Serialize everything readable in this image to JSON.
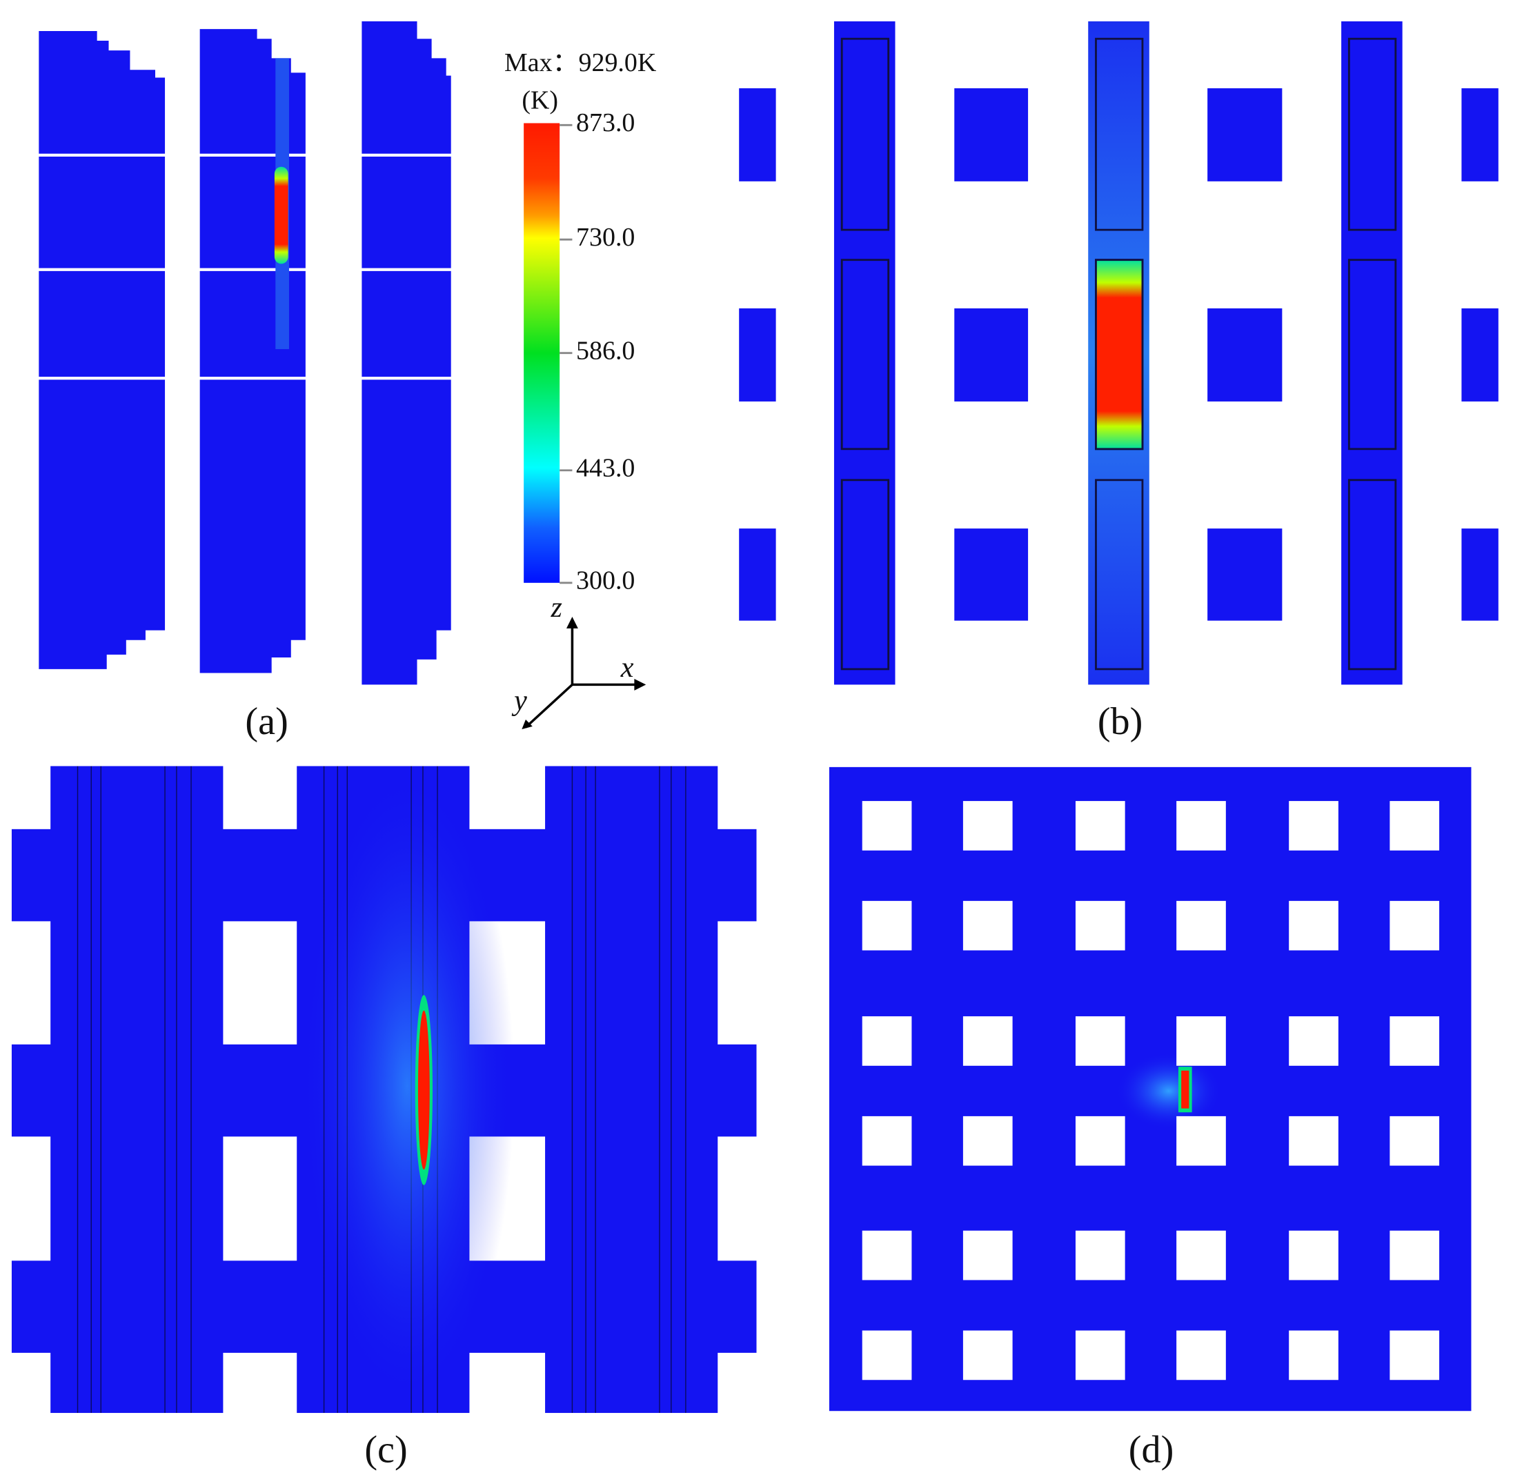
{
  "figure": {
    "colorbar": {
      "max_label": "Max：929.0K",
      "unit": "(K)",
      "ticks": [
        "873.0",
        "730.0",
        "586.0",
        "443.0",
        "300.0"
      ]
    },
    "axes": {
      "z": "z",
      "x": "x",
      "y": "y"
    },
    "panels": [
      "(a)",
      "(b)",
      "(c)",
      "(d)"
    ]
  }
}
